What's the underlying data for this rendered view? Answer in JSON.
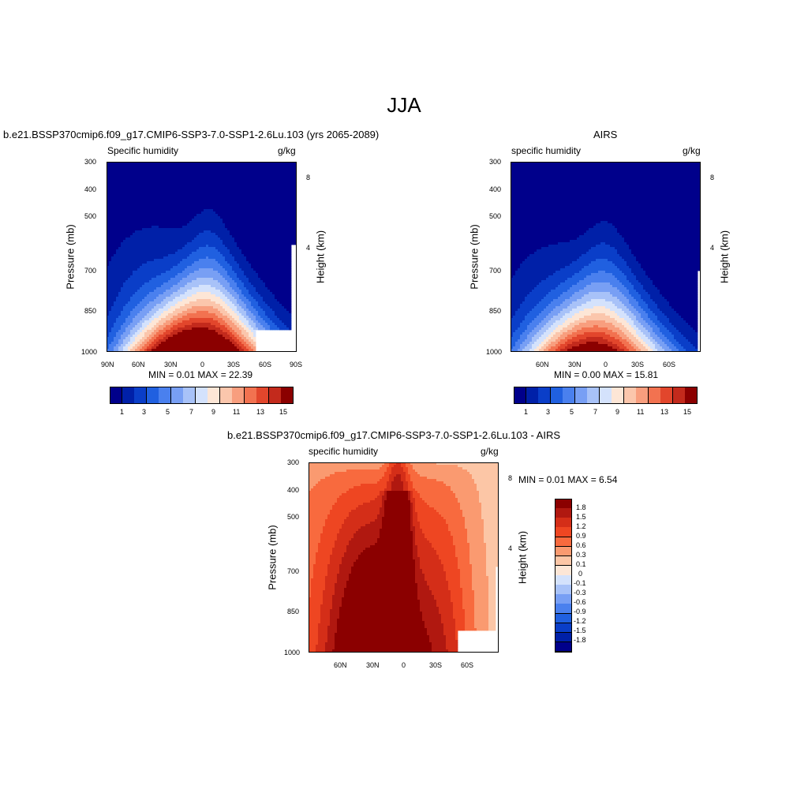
{
  "page_title": "JJA",
  "chart_data": [
    {
      "type": "heatmap",
      "id": "model",
      "title": "b.e21.BSSP370cmip6.f09_g17.CMIP6-SSP3-7.0-SSP1-2.6Lu.103 (yrs 2065-2089)",
      "left_label": "Specific humidity",
      "right_label": "g/kg",
      "ylabel": "Pressure (mb)",
      "y2label": "Height (km)",
      "x_ticks": [
        "90N",
        "60N",
        "30N",
        "0",
        "30S",
        "60S",
        "90S"
      ],
      "y_ticks": [
        "300",
        "400",
        "500",
        "700",
        "850",
        "1000"
      ],
      "y2_ticks": [
        "8",
        "4"
      ],
      "stats": "MIN =   0.01  MAX =  22.39",
      "min": 0.01,
      "max": 22.39,
      "levels": [
        1,
        2,
        3,
        4,
        5,
        6,
        7,
        8,
        9,
        10,
        11,
        12,
        13,
        14,
        15
      ],
      "colorbar_labels": [
        "1",
        "3",
        "5",
        "7",
        "9",
        "11",
        "13",
        "15"
      ]
    },
    {
      "type": "heatmap",
      "id": "airs",
      "title": "AIRS",
      "left_label": "specific humidity",
      "right_label": "g/kg",
      "ylabel": "Pressure (mb)",
      "y2label": "Height (km)",
      "x_ticks": [
        "60N",
        "30N",
        "0",
        "30S",
        "60S"
      ],
      "y_ticks": [
        "300",
        "400",
        "500",
        "700",
        "850",
        "1000"
      ],
      "y2_ticks": [
        "8",
        "4"
      ],
      "stats": "MIN =   0.00  MAX =  15.81",
      "min": 0.0,
      "max": 15.81,
      "levels": [
        1,
        2,
        3,
        4,
        5,
        6,
        7,
        8,
        9,
        10,
        11,
        12,
        13,
        14,
        15
      ],
      "colorbar_labels": [
        "1",
        "3",
        "5",
        "7",
        "9",
        "11",
        "13",
        "15"
      ]
    },
    {
      "type": "heatmap",
      "id": "diff",
      "title": "b.e21.BSSP370cmip6.f09_g17.CMIP6-SSP3-7.0-SSP1-2.6Lu.103 - AIRS",
      "left_label": "specific humidity",
      "right_label": "g/kg",
      "ylabel": "Pressure (mb)",
      "y2label": "Height (km)",
      "x_ticks": [
        "60N",
        "30N",
        "0",
        "30S",
        "60S"
      ],
      "y_ticks": [
        "300",
        "400",
        "500",
        "700",
        "850",
        "1000"
      ],
      "y2_ticks": [
        "8",
        "4"
      ],
      "stats": "MIN =   0.01  MAX =   6.54",
      "min": 0.01,
      "max": 6.54,
      "levels": [
        -1.8,
        -1.5,
        -1.2,
        -0.9,
        -0.6,
        -0.3,
        -0.1,
        0,
        0.1,
        0.3,
        0.6,
        0.9,
        1.2,
        1.5,
        1.8
      ],
      "colorbar_labels": [
        "1.8",
        "1.5",
        "1.2",
        "0.9",
        "0.6",
        "0.3",
        "0.1",
        "0",
        "-0.1",
        "-0.3",
        "-0.6",
        "-0.9",
        "-1.2",
        "-1.5",
        "-1.8"
      ]
    }
  ],
  "colors": {
    "humidity_scale": [
      "#00008b",
      "#0020a8",
      "#0a3ec8",
      "#2060e0",
      "#4a80ee",
      "#789ff4",
      "#a8c2f8",
      "#d4e2fc",
      "#fde6d6",
      "#fbc6ac",
      "#f89e7e",
      "#f27250",
      "#e2462c",
      "#c32a1c",
      "#8b0000"
    ],
    "diff_scale": [
      "#8b0000",
      "#b01810",
      "#d42e18",
      "#ee4622",
      "#f86a3e",
      "#fa9a70",
      "#fcc6a6",
      "#fde6d6",
      "#d4e2fc",
      "#a8c2f8",
      "#789ff4",
      "#4a80ee",
      "#2060e0",
      "#0a3ec8",
      "#0020a8",
      "#00008b"
    ]
  }
}
